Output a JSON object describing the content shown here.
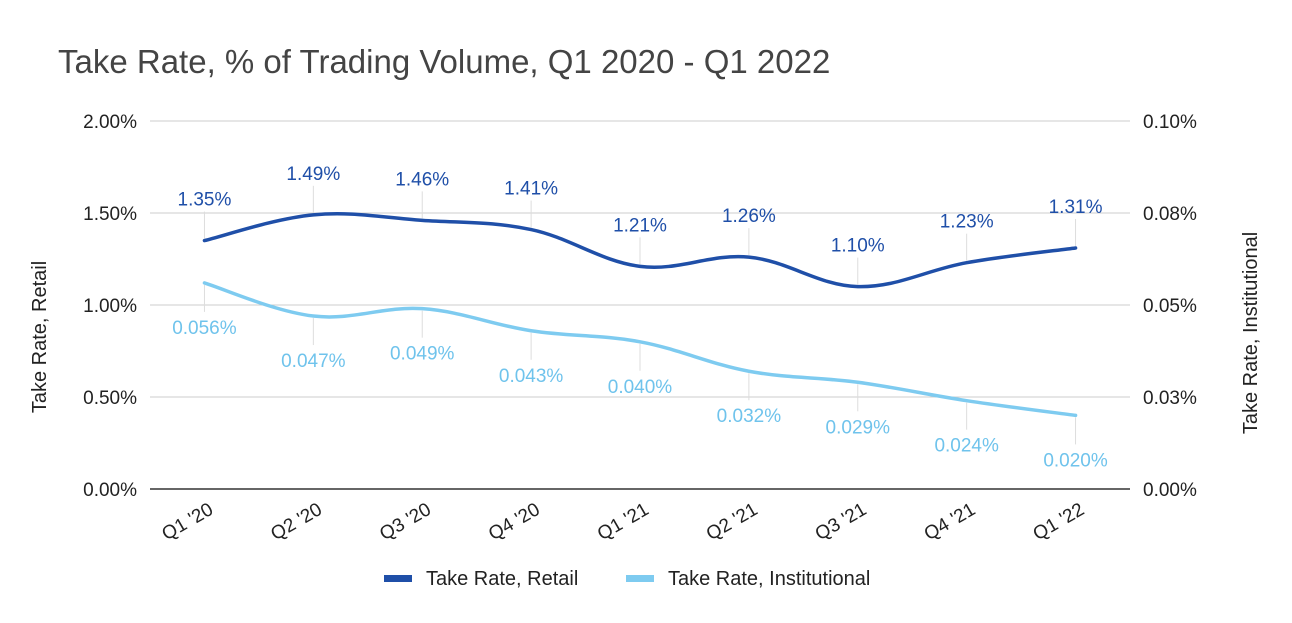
{
  "chart_data": {
    "type": "line",
    "title": "Take Rate, % of Trading Volume, Q1 2020 - Q1 2022",
    "categories": [
      "Q1 '20",
      "Q2 '20",
      "Q3 '20",
      "Q4 '20",
      "Q1 '21",
      "Q2 '21",
      "Q3 '21",
      "Q4 '21",
      "Q1 '22"
    ],
    "left_axis": {
      "title": "Take Rate, Retail",
      "ylim": [
        0,
        2.0
      ],
      "ticks": [
        0,
        0.5,
        1.0,
        1.5,
        2.0
      ],
      "tick_labels": [
        "0.00%",
        "0.50%",
        "1.00%",
        "1.50%",
        "2.00%"
      ]
    },
    "right_axis": {
      "title": "Take Rate, Institutional",
      "ylim": [
        0,
        0.1
      ],
      "ticks": [
        0,
        0.025,
        0.05,
        0.075,
        0.1
      ],
      "tick_labels": [
        "0.00%",
        "0.03%",
        "0.05%",
        "0.08%",
        "0.10%"
      ]
    },
    "series": [
      {
        "name": "Take Rate, Retail",
        "axis": "left",
        "color": "#1f4fa8",
        "values": [
          1.35,
          1.49,
          1.46,
          1.41,
          1.21,
          1.26,
          1.1,
          1.23,
          1.31
        ],
        "labels": [
          "1.35%",
          "1.49%",
          "1.46%",
          "1.41%",
          "1.21%",
          "1.26%",
          "1.10%",
          "1.23%",
          "1.31%"
        ]
      },
      {
        "name": "Take Rate, Institutional",
        "axis": "right",
        "color": "#7ecbf0",
        "values": [
          0.056,
          0.047,
          0.049,
          0.043,
          0.04,
          0.032,
          0.029,
          0.024,
          0.02
        ],
        "labels": [
          "0.056%",
          "0.047%",
          "0.049%",
          "0.043%",
          "0.040%",
          "0.032%",
          "0.029%",
          "0.024%",
          "0.020%"
        ]
      }
    ],
    "legend": "bottom",
    "grid": true
  }
}
